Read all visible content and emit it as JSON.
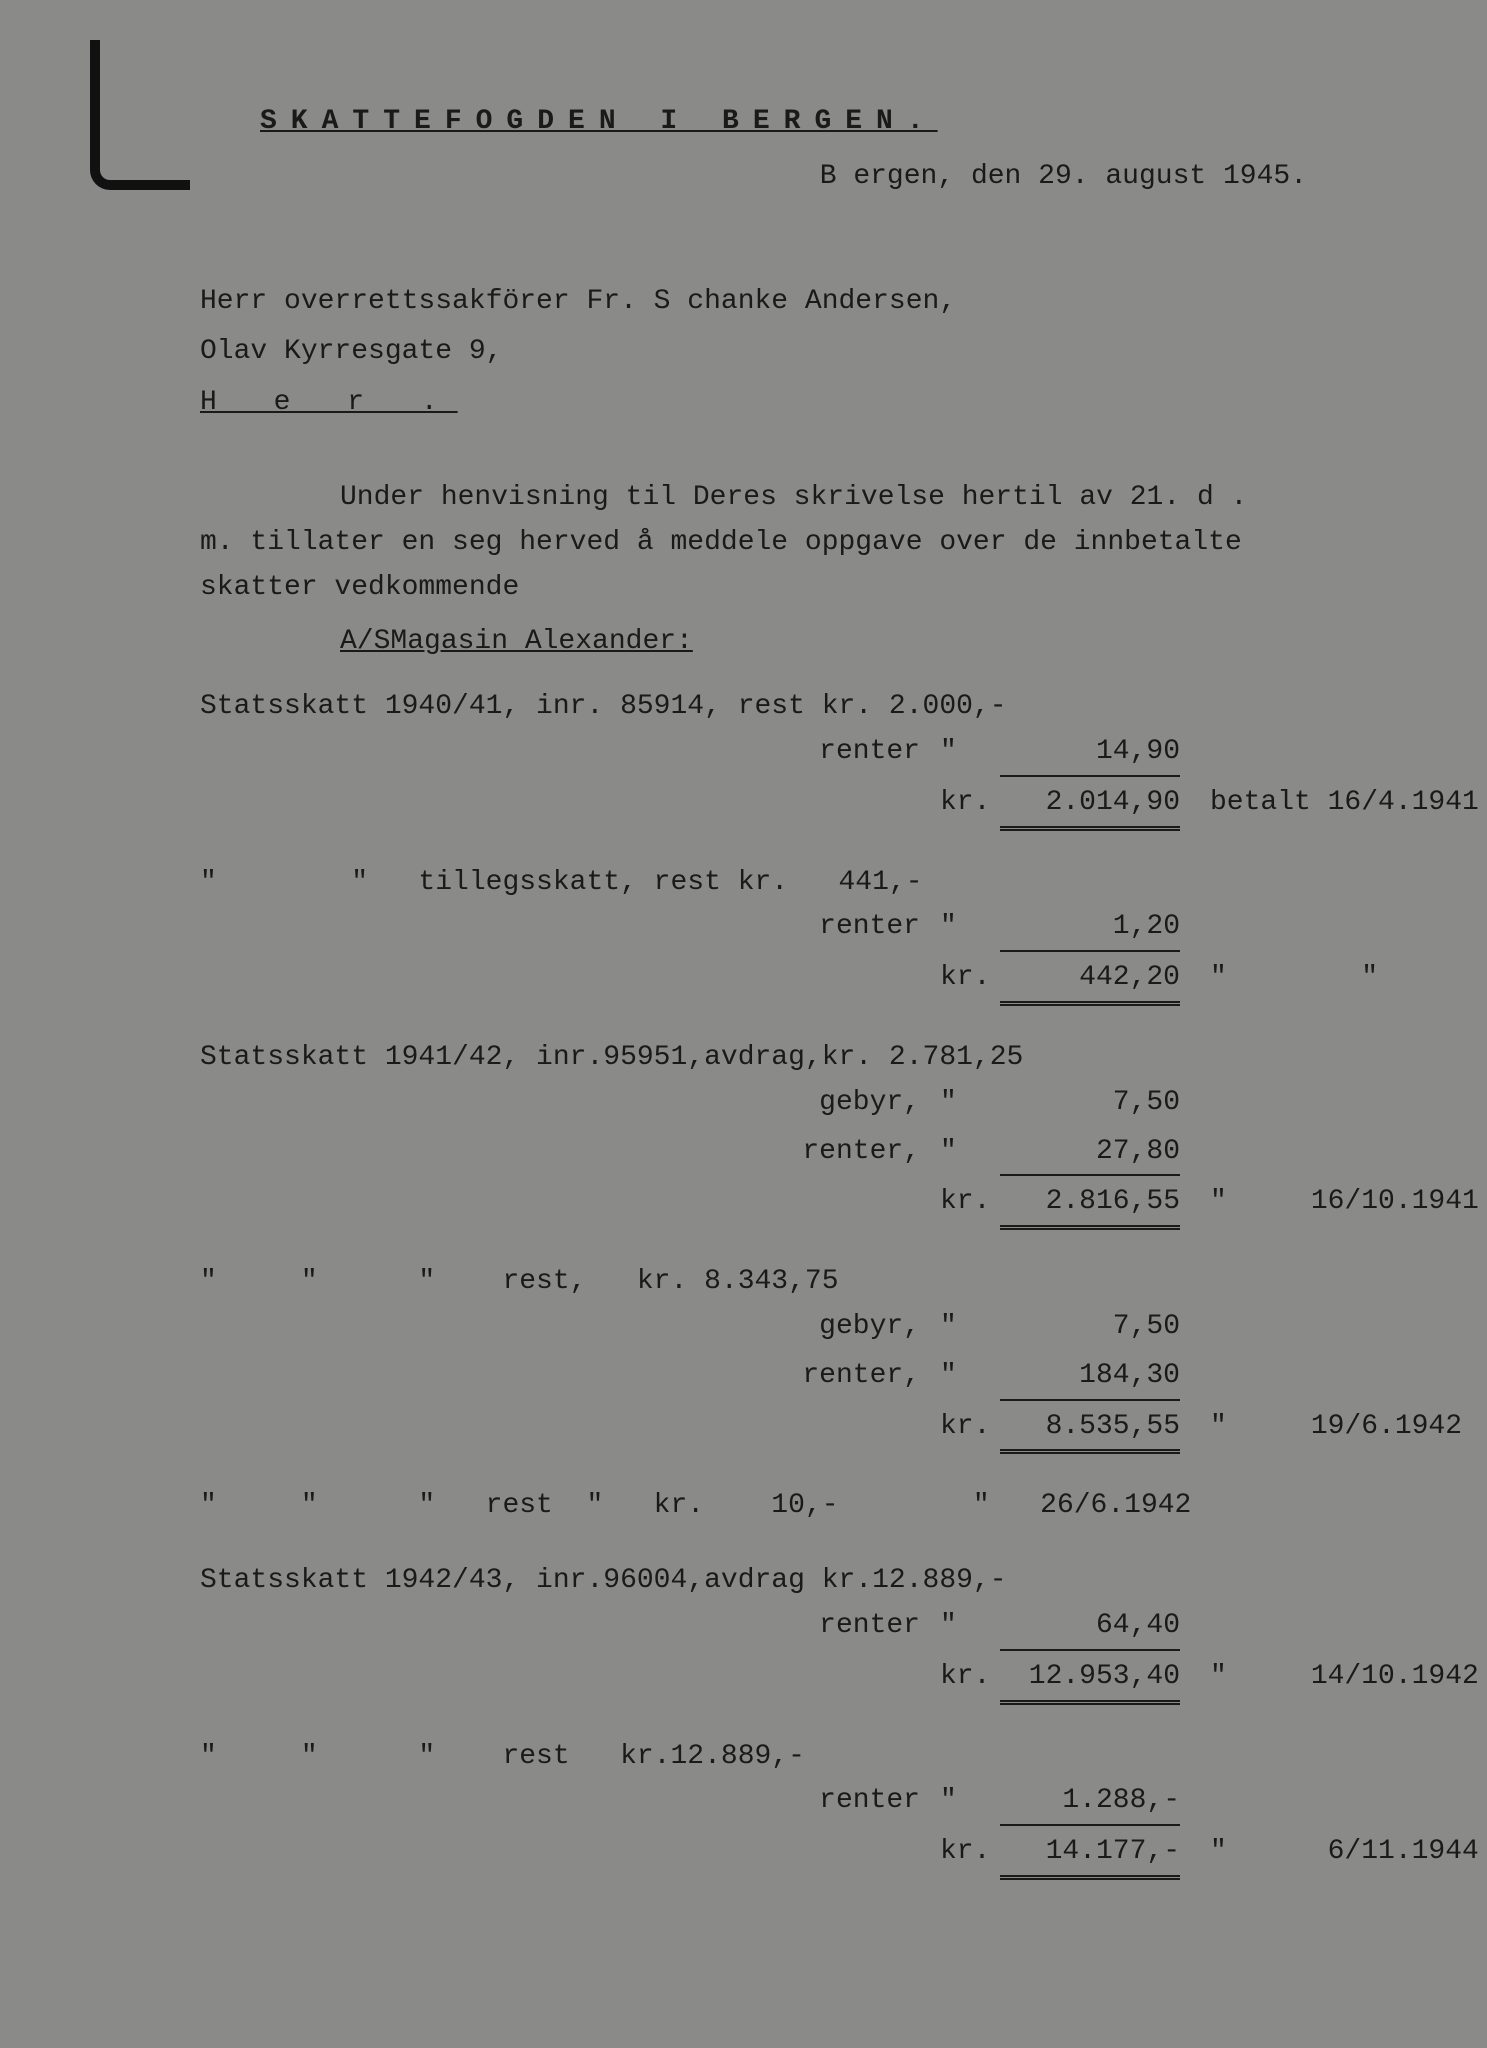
{
  "letterhead": "SKATTEFOGDEN I BERGEN.",
  "dateline": "B ergen, den 29. august 1945.",
  "addressee": {
    "line1": "Herr overrettssakförer Fr. S chanke Andersen,",
    "line2": "Olav Kyrresgate 9,",
    "line3": "H e r ."
  },
  "body": {
    "p1a": "Under henvisning til Deres skrivelse hertil av 21. d .",
    "p1b": "m. tillater en seg herved å meddele oppgave over de innbetalte",
    "p1c": "skatter vedkommende"
  },
  "company": "A/SMagasin Alexander:",
  "entries": [
    {
      "header": "Statsskatt 1940/41, inr. 85914, rest kr. 2.000,-",
      "lines": [
        {
          "label": "renter",
          "curr": "\"",
          "amount": "14,90",
          "u": "single"
        },
        {
          "label": "",
          "curr": "kr.",
          "amount": "2.014,90",
          "u": "double",
          "note": "betalt 16/4.1941"
        }
      ]
    },
    {
      "header": "\"        \"   tillegsskatt, rest kr.   441,-",
      "lines": [
        {
          "label": "renter",
          "curr": "\"",
          "amount": "1,20",
          "u": "single"
        },
        {
          "label": "",
          "curr": "kr.",
          "amount": "442,20",
          "u": "double",
          "note": "\"        \""
        }
      ]
    },
    {
      "header": "Statsskatt 1941/42, inr.95951,avdrag,kr. 2.781,25",
      "lines": [
        {
          "label": "gebyr,",
          "curr": "\"",
          "amount": "7,50",
          "u": ""
        },
        {
          "label": "renter,",
          "curr": "\"",
          "amount": "27,80",
          "u": "single"
        },
        {
          "label": "",
          "curr": "kr.",
          "amount": "2.816,55",
          "u": "double",
          "note": "\"     16/10.1941"
        }
      ]
    },
    {
      "header": "\"     \"      \"    rest,   kr. 8.343,75",
      "lines": [
        {
          "label": "gebyr,",
          "curr": "\"",
          "amount": "7,50",
          "u": ""
        },
        {
          "label": "renter,",
          "curr": "\"",
          "amount": "184,30",
          "u": "single"
        },
        {
          "label": "",
          "curr": "kr.",
          "amount": "8.535,55",
          "u": "double",
          "note": "\"     19/6.1942"
        }
      ]
    },
    {
      "header": "\"     \"      \"   rest  \"   kr.    10,-        \"   26/6.1942",
      "lines": []
    },
    {
      "header": "Statsskatt 1942/43, inr.96004,avdrag kr.12.889,-",
      "lines": [
        {
          "label": "renter",
          "curr": "\"",
          "amount": "64,40",
          "u": "single"
        },
        {
          "label": "",
          "curr": "kr.",
          "amount": "12.953,40",
          "u": "double",
          "note": "\"     14/10.1942"
        }
      ]
    },
    {
      "header": "\"     \"      \"    rest   kr.12.889,-",
      "lines": [
        {
          "label": "renter",
          "curr": "\"",
          "amount": "1.288,-",
          "u": "single"
        },
        {
          "label": "",
          "curr": "kr.",
          "amount": "14.177,-",
          "u": "double",
          "note": "\"      6/11.1944"
        }
      ]
    }
  ]
}
